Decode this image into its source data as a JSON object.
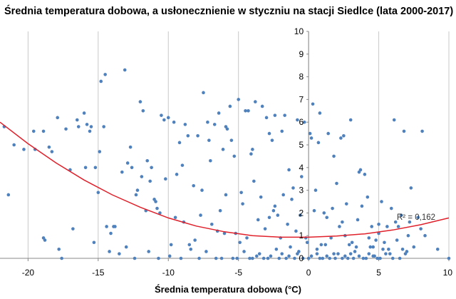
{
  "chart_data": {
    "type": "scatter",
    "title": "Średnia temperatura dobowa, a usłonecznienie w styczniu na stacji Siedlce (lata 2000-2017)",
    "xlabel": "Średnia temperatura dobowa (°C)",
    "ylabel": "",
    "xlim": [
      -22,
      10
    ],
    "ylim": [
      0,
      10
    ],
    "x_ticks": [
      "-20",
      "-15",
      "-10",
      "-5",
      "0",
      "5",
      "10"
    ],
    "y_ticks": [
      "0",
      "1",
      "2",
      "3",
      "4",
      "5",
      "6",
      "7",
      "8",
      "9",
      "10"
    ],
    "grid": "vertical",
    "marker_color": "#4F81BD",
    "trendline": {
      "label": "R² = 0,162",
      "color": "#E0202A",
      "x": [
        -22,
        -20,
        -18,
        -16,
        -14,
        -12,
        -10,
        -8,
        -6,
        -4,
        -2,
        0,
        2,
        4,
        6,
        8,
        10
      ],
      "y": [
        6.0,
        5.05,
        4.2,
        3.45,
        2.8,
        2.25,
        1.78,
        1.42,
        1.17,
        1.0,
        0.93,
        0.93,
        0.98,
        1.08,
        1.25,
        1.48,
        1.78
      ]
    },
    "series": [
      {
        "x": [
          -21.7,
          -21.4,
          -20.3,
          -19.5,
          -18.9,
          -18.8,
          -18.5,
          -17.9,
          -17.6,
          -17.0,
          -16.5,
          -16.0,
          -15.5,
          -15.0,
          -14.8,
          -14.5,
          -14.2,
          -13.8,
          -13.1,
          -12.7,
          -12.0,
          -11.5,
          -11.0,
          -10.5,
          -10.0,
          -9.4,
          -8.8,
          -8.1,
          -7.5,
          -6.9,
          -6.4,
          -5.9,
          -5.0,
          -4.5,
          -4.0,
          -3.3,
          -2.8,
          -2.0,
          -1.4,
          -0.8,
          -0.5,
          0.3,
          0.8,
          1.2,
          1.8,
          2.5,
          3.0,
          3.6,
          4.2,
          5.0,
          5.4,
          6.1,
          6.8,
          7.3,
          8.1,
          2.3,
          -2.4,
          4.6,
          -21.0,
          -19.6,
          -17.3,
          -16.4,
          -15.8,
          -15.2,
          -14.6,
          -13.9,
          -12.9,
          -12.3,
          -11.8,
          -11.2,
          -10.8,
          -10.3,
          -9.6,
          -9.0,
          -8.6,
          -7.7,
          -7.2,
          -6.7,
          -6.1,
          -5.6,
          -5.2,
          -4.8,
          -4.3,
          -3.8,
          -3.1,
          -2.6,
          -2.2,
          -1.7,
          -1.1,
          -0.3,
          0.2,
          0.7,
          1.4,
          2.0,
          2.7,
          3.4,
          4.0,
          4.8,
          5.7,
          6.4,
          7.0,
          -18.3,
          -16.8,
          -15.6,
          -14.9,
          -14.1,
          -13.3,
          -12.6,
          -11.9,
          -11.3,
          -10.6,
          -9.8,
          -9.2,
          -8.4,
          -7.9,
          -7.1,
          -6.5,
          -5.8,
          -5.3,
          -4.7,
          -4.1,
          -3.6,
          -3.0,
          -2.4,
          -1.9,
          -1.2,
          -0.6,
          0.1,
          0.5,
          1.1,
          1.7,
          2.4,
          3.1,
          3.8,
          4.5,
          5.2,
          5.9,
          6.6,
          7.2,
          7.8,
          -17.8,
          -15.3,
          -13.0,
          -11.6,
          -10.2,
          -8.9,
          -7.6,
          -6.3,
          -5.5,
          -4.4,
          -3.4,
          -2.5,
          -1.5,
          -0.9,
          -0.1,
          0.6,
          1.3,
          2.2,
          2.9,
          3.7,
          4.3,
          5.0,
          5.6,
          6.3,
          6.9,
          7.5,
          8.3,
          9.2,
          10.0,
          -18.9,
          -15.9,
          -14.4,
          -12.2,
          -10.9,
          -9.5,
          -8.2,
          -7.0,
          -5.9,
          -4.9,
          -3.9,
          -2.8,
          -1.8,
          -0.7,
          0.4,
          1.6,
          2.6,
          3.5,
          4.4,
          5.3,
          6.2,
          7.1,
          8.0,
          -13.5,
          -11.4,
          -9.9,
          -8.5,
          -7.3,
          -6.0,
          -4.6,
          -3.5,
          -2.3,
          -1.3,
          -0.2,
          0.9,
          2.1,
          3.3,
          4.7,
          5.8,
          6.7,
          -12.4,
          -10.7,
          -9.1,
          -7.8,
          -6.6,
          -5.4,
          -4.2,
          -3.2,
          -2.1,
          -1.0,
          0.0,
          1.0,
          1.9,
          2.8,
          3.9,
          4.9,
          6.0,
          -6.2,
          -5.1,
          -4.0,
          -2.9,
          -1.6,
          -0.4,
          0.8,
          1.5,
          2.4,
          3.2,
          4.1,
          5.1,
          6.5,
          -3.7,
          -2.7,
          -1.4,
          0.2,
          1.3,
          2.6,
          3.6,
          4.6,
          -1.9,
          -0.8,
          0.6,
          1.8,
          3.0,
          4.3,
          5.5
        ],
        "y": [
          5.8,
          2.8,
          4.8,
          4.8,
          5.6,
          0.8,
          4.9,
          6.2,
          0.0,
          3.9,
          6.1,
          6.4,
          5.8,
          2.9,
          7.8,
          8.1,
          0.3,
          1.4,
          8.3,
          4.9,
          6.9,
          4.3,
          2.6,
          6.3,
          6.2,
          3.7,
          5.9,
          0.8,
          7.3,
          1.5,
          6.4,
          5.8,
          7.0,
          6.5,
          4.8,
          6.7,
          5.5,
          0.9,
          3.9,
          6.1,
          3.6,
          6.8,
          6.4,
          0.6,
          4.5,
          5.4,
          6.1,
          3.8,
          2.7,
          1.5,
          0.7,
          6.1,
          5.6,
          3.1,
          5.6,
          5.3,
          6.3,
          0.5,
          5.0,
          5.6,
          5.7,
          5.8,
          5.9,
          4.0,
          5.8,
          1.4,
          4.2,
          2.8,
          6.5,
          4.0,
          2.2,
          6.1,
          6.0,
          4.1,
          5.4,
          1.9,
          6.0,
          5.9,
          4.8,
          6.7,
          1.1,
          2.9,
          6.5,
          6.9,
          1.3,
          5.2,
          1.9,
          6.3,
          3.1,
          6.0,
          5.3,
          5.1,
          5.5,
          3.3,
          2.4,
          0.5,
          3.7,
          0.8,
          0.4,
          1.4,
          0.3,
          4.7,
          1.3,
          5.6,
          4.7,
          1.1,
          3.8,
          4.0,
          3.6,
          3.4,
          2.0,
          0.6,
          5.1,
          0.4,
          5.4,
          5.2,
          1.2,
          5.7,
          4.5,
          2.4,
          4.6,
          1.7,
          6.2,
          2.3,
          5.6,
          2.6,
          1.9,
          5.5,
          3.0,
          2.0,
          2.2,
          1.6,
          0.7,
          2.3,
          1.4,
          2.5,
          2.2,
          1.9,
          1.6,
          1.8,
          0.4,
          0.7,
          0.5,
          2.1,
          3.5,
          1.6,
          3.0,
          2.1,
          5.2,
          0.9,
          2.7,
          2.1,
          1.5,
          1.2,
          0.7,
          0.4,
          1.8,
          1.4,
          0.6,
          3.9,
          0.9,
          1.1,
          1.4,
          0.8,
          0.2,
          0.5,
          1.0,
          0.4,
          0.0,
          0.9,
          4.0,
          1.4,
          3.0,
          2.5,
          1.8,
          3.2,
          4.3,
          2.8,
          0.7,
          3.4,
          1.8,
          2.8,
          0.3,
          2.1,
          0.9,
          1.0,
          1.7,
          0.5,
          0.4,
          1.6,
          1.0,
          1.3,
          0.2,
          0.3,
          0.1,
          0.6,
          0.3,
          1.1,
          0.3,
          0.2,
          0.4,
          0.5,
          0.9,
          0.6,
          0.2,
          0.3,
          0.1,
          0.2,
          0.4,
          0.0,
          0.0,
          0.0,
          0.0,
          0.0,
          0.0,
          0.0,
          0.0,
          0.0,
          0.0,
          0.0,
          0.0,
          0.0,
          0.0,
          0.0,
          0.0,
          0.0,
          0.0,
          0.0,
          0.0,
          0.0,
          0.0,
          0.0,
          0.0,
          0.0,
          0.0,
          0.0,
          0.0,
          0.0,
          0.0,
          0.1,
          0.1,
          0.1,
          0.1,
          0.1,
          0.1,
          0.1,
          0.1,
          0.2,
          0.2,
          0.2,
          0.2,
          0.2,
          0.2,
          0.2
        ]
      }
    ]
  }
}
